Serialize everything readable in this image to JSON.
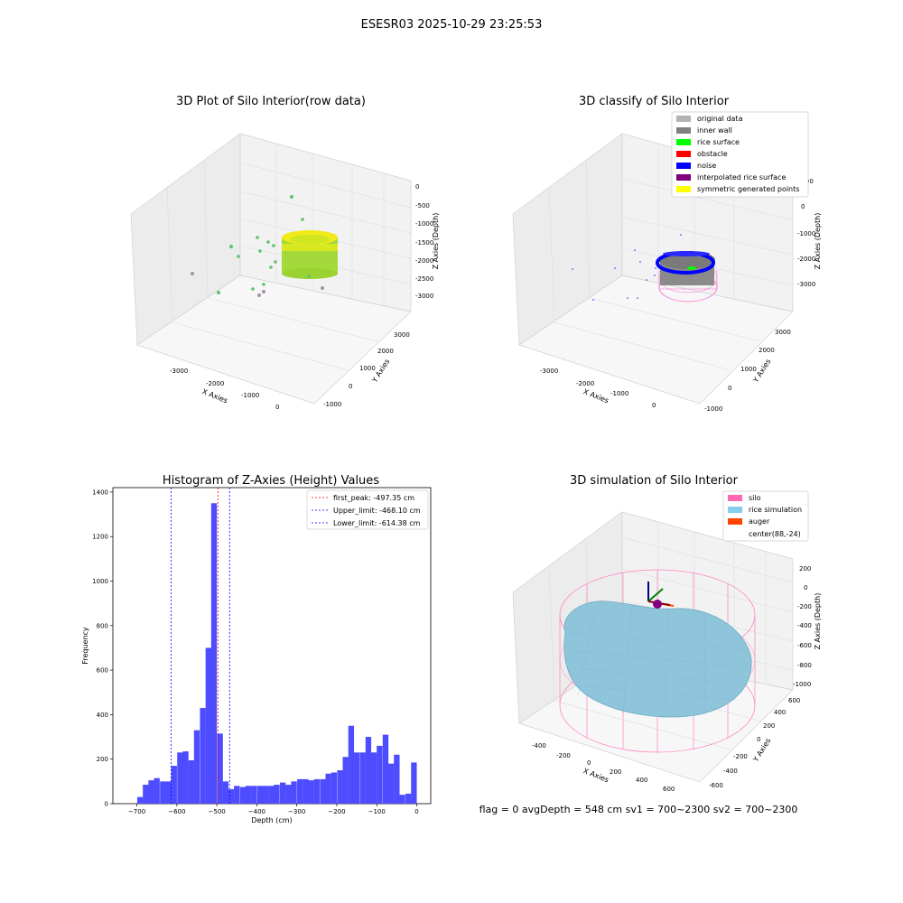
{
  "figure": {
    "suptitle": "ESESR03 2025-10-29 23:25:53",
    "footer": "flag = 0     avgDepth = 548 cm  sv1 = 700~2300  sv2 = 700~2300"
  },
  "panels": {
    "raw": {
      "title": "3D Plot of Silo Interior(row data)",
      "xlabel": "X Axies",
      "ylabel": "Y Axies",
      "zlabel": "Z Axies (Depth)",
      "xticks": [
        "-3000",
        "-2000",
        "-1000",
        "0"
      ],
      "yticks": [
        "-1000",
        "0",
        "1000",
        "2000",
        "3000"
      ],
      "zticks": [
        "0",
        "-500",
        "-1000",
        "-1500",
        "-2000",
        "-2500",
        "-3000"
      ]
    },
    "classify": {
      "title": "3D classify of Silo Interior",
      "xlabel": "X Axies",
      "ylabel": "Y Axies",
      "zlabel": "Z Axies (Depth)",
      "xticks": [
        "-3000",
        "-2000",
        "-1000",
        "0"
      ],
      "yticks": [
        "-1000",
        "0",
        "1000",
        "2000",
        "3000"
      ],
      "zticks": [
        "1000",
        "0",
        "-1000",
        "-2000",
        "-3000"
      ],
      "legend": [
        {
          "label": "original data",
          "color": "#b3b3b3"
        },
        {
          "label": "inner wall",
          "color": "#808080"
        },
        {
          "label": "rice surface",
          "color": "#00ff00"
        },
        {
          "label": "obstacle",
          "color": "#ff0000"
        },
        {
          "label": "noise",
          "color": "#0000ff"
        },
        {
          "label": "interpolated rice surface",
          "color": "#800080"
        },
        {
          "label": "symmetric generated points",
          "color": "#ffff00"
        }
      ]
    },
    "simulation": {
      "title": "3D simulation of Silo Interior",
      "xlabel": "X Axies",
      "ylabel": "Y Axies",
      "zlabel": "Z Axies (Depth)",
      "xticks": [
        "-400",
        "-200",
        "0",
        "200",
        "400",
        "600"
      ],
      "yticks": [
        "-600",
        "-400",
        "-200",
        "0",
        "200",
        "400",
        "600"
      ],
      "zticks": [
        "200",
        "0",
        "-200",
        "-400",
        "-600",
        "-800",
        "-1000"
      ],
      "legend": [
        {
          "label": "silo",
          "color": "#ff69b4"
        },
        {
          "label": "rice simulation",
          "color": "#87ceeb"
        },
        {
          "label": "auger",
          "color": "#ff4500"
        },
        {
          "label": "center(88,-24)",
          "color": ""
        }
      ]
    }
  },
  "chart_data": [
    {
      "type": "bar",
      "title": "Histogram of Z-Axies (Height) Values",
      "xlabel": "Depth (cm)",
      "ylabel": "Frequency",
      "xlim": [
        -760,
        35
      ],
      "ylim": [
        0,
        1420
      ],
      "xticks": [
        -700,
        -600,
        -500,
        -400,
        -300,
        -200,
        -100,
        0
      ],
      "yticks": [
        0,
        200,
        400,
        600,
        800,
        1000,
        1200,
        1400
      ],
      "bin_width": 14.3,
      "bins": [
        {
          "x": -707,
          "count": 0
        },
        {
          "x": -692,
          "count": 30
        },
        {
          "x": -678,
          "count": 85
        },
        {
          "x": -664,
          "count": 105
        },
        {
          "x": -650,
          "count": 115
        },
        {
          "x": -635,
          "count": 100
        },
        {
          "x": -621,
          "count": 100
        },
        {
          "x": -607,
          "count": 170
        },
        {
          "x": -592,
          "count": 230
        },
        {
          "x": -578,
          "count": 235
        },
        {
          "x": -564,
          "count": 195
        },
        {
          "x": -550,
          "count": 330
        },
        {
          "x": -535,
          "count": 430
        },
        {
          "x": -521,
          "count": 700
        },
        {
          "x": -507,
          "count": 1350
        },
        {
          "x": -492,
          "count": 315
        },
        {
          "x": -478,
          "count": 100
        },
        {
          "x": -464,
          "count": 65
        },
        {
          "x": -450,
          "count": 80
        },
        {
          "x": -435,
          "count": 75
        },
        {
          "x": -421,
          "count": 80
        },
        {
          "x": -407,
          "count": 80
        },
        {
          "x": -392,
          "count": 80
        },
        {
          "x": -378,
          "count": 80
        },
        {
          "x": -364,
          "count": 80
        },
        {
          "x": -350,
          "count": 85
        },
        {
          "x": -335,
          "count": 95
        },
        {
          "x": -321,
          "count": 85
        },
        {
          "x": -307,
          "count": 100
        },
        {
          "x": -292,
          "count": 110
        },
        {
          "x": -278,
          "count": 110
        },
        {
          "x": -264,
          "count": 105
        },
        {
          "x": -250,
          "count": 110
        },
        {
          "x": -235,
          "count": 110
        },
        {
          "x": -221,
          "count": 135
        },
        {
          "x": -207,
          "count": 140
        },
        {
          "x": -192,
          "count": 150
        },
        {
          "x": -178,
          "count": 210
        },
        {
          "x": -164,
          "count": 350
        },
        {
          "x": -150,
          "count": 230
        },
        {
          "x": -135,
          "count": 230
        },
        {
          "x": -121,
          "count": 300
        },
        {
          "x": -107,
          "count": 230
        },
        {
          "x": -93,
          "count": 260
        },
        {
          "x": -78,
          "count": 310
        },
        {
          "x": -64,
          "count": 180
        },
        {
          "x": -50,
          "count": 220
        },
        {
          "x": -36,
          "count": 40
        },
        {
          "x": -21,
          "count": 45
        },
        {
          "x": -7,
          "count": 185
        }
      ],
      "bar_color": "#4d4dff",
      "reference_lines": [
        {
          "label": "first_peak: -497.35 cm",
          "x": -497.35,
          "color": "#ff0000"
        },
        {
          "label": "Upper_limit: -468.10 cm",
          "x": -468.1,
          "color": "#0000ff"
        },
        {
          "label": "Lower_limit: -614.38 cm",
          "x": -614.38,
          "color": "#0000ff"
        }
      ],
      "legend_position": "top-right"
    }
  ]
}
